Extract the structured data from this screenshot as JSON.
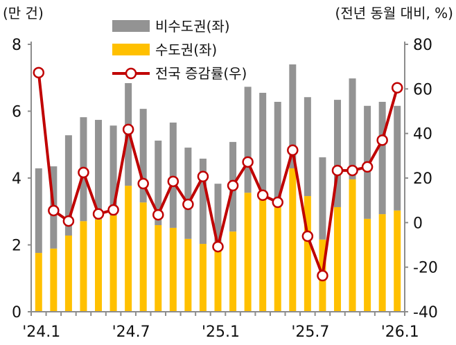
{
  "chart_data": {
    "type": "bar+line",
    "left_unit": "(만 건)",
    "right_unit": "(전년 동월 대비, %)",
    "left_ylim": [
      0,
      8
    ],
    "right_ylim": [
      -40,
      80
    ],
    "left_ticks": [
      "0",
      "2",
      "4",
      "6",
      "8"
    ],
    "right_ticks": [
      "-40",
      "-20",
      "0",
      "20",
      "40",
      "60",
      "80"
    ],
    "x_tick_labels": [
      "'24.1",
      "'24.7",
      "'25.1",
      "'25.7",
      "'26.1"
    ],
    "categories": [
      "24.1",
      "24.2",
      "24.3",
      "24.4",
      "24.5",
      "24.6",
      "24.7",
      "24.8",
      "24.9",
      "24.10",
      "24.11",
      "24.12",
      "25.1",
      "25.2",
      "25.3",
      "25.4",
      "25.5",
      "25.6",
      "25.7",
      "25.8",
      "25.9",
      "25.10",
      "25.11",
      "25.12",
      "26.1"
    ],
    "legend": [
      "비수도권(좌)",
      "수도권(좌)",
      "전국 증감률(우)"
    ],
    "series": [
      {
        "name": "수도권(좌)",
        "color": "#FFC000",
        "values": [
          1.76,
          1.89,
          2.28,
          2.71,
          2.76,
          2.88,
          3.77,
          3.27,
          2.59,
          2.51,
          2.18,
          2.03,
          1.85,
          2.4,
          3.56,
          3.35,
          3.2,
          4.29,
          3.46,
          2.16,
          3.13,
          3.96,
          2.78,
          2.92,
          3.03
        ]
      },
      {
        "name": "비수도권(좌)",
        "color": "#939393",
        "values": [
          2.53,
          2.46,
          3.0,
          3.11,
          2.98,
          2.69,
          3.07,
          2.8,
          2.53,
          3.15,
          2.73,
          2.55,
          1.98,
          2.68,
          3.17,
          3.2,
          3.08,
          3.11,
          2.96,
          2.46,
          3.21,
          3.02,
          3.38,
          3.36,
          3.13
        ]
      },
      {
        "name": "전국 증감률(우)",
        "color": "#C00000",
        "values": [
          67.3,
          5.4,
          0.7,
          22.5,
          3.9,
          5.7,
          41.8,
          17.5,
          3.5,
          18.5,
          8.2,
          20.7,
          -10.8,
          16.6,
          27.2,
          12.3,
          9.1,
          32.5,
          -6.1,
          -23.8,
          23.4,
          23.4,
          25.0,
          37.0,
          60.5
        ]
      }
    ]
  }
}
